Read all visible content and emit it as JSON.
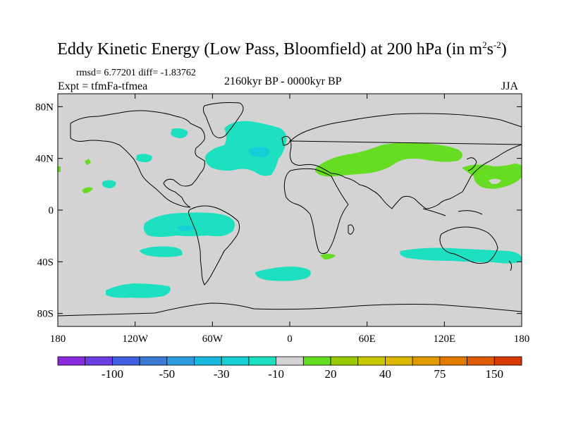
{
  "title": {
    "main": "Eddy Kinetic Energy (Low Pass, Bloomfield) at 200 hPa (in m",
    "sup1": "2",
    "mid": "s",
    "sup2": "-2",
    "end": ")"
  },
  "stats": "rmsd= 6.77201 diff= -1.83762",
  "experiment": "Expt = tfmFa-tfmea",
  "period": "2160kyr BP - 0000kyr BP",
  "season": "JJA",
  "map": {
    "projection": "cylindrical-equidistant",
    "background_color": "#d3d3d3",
    "lon_range": [
      -180,
      180
    ],
    "lat_range": [
      -90,
      90
    ],
    "y_ticks": [
      {
        "label": "80N",
        "lat": 80
      },
      {
        "label": "40N",
        "lat": 40
      },
      {
        "label": "0",
        "lat": 0
      },
      {
        "label": "40S",
        "lat": -40
      },
      {
        "label": "80S",
        "lat": -80
      }
    ],
    "x_ticks": [
      {
        "label": "180",
        "lon": -180
      },
      {
        "label": "120W",
        "lon": -120
      },
      {
        "label": "60W",
        "lon": -60
      },
      {
        "label": "0",
        "lon": 0
      },
      {
        "label": "60E",
        "lon": 60
      },
      {
        "label": "120E",
        "lon": 120
      },
      {
        "label": "180",
        "lon": 180
      }
    ]
  },
  "colorbar": {
    "colors": [
      "#8a2be2",
      "#6a3fe0",
      "#3f5ee0",
      "#3a7bd5",
      "#2e9be0",
      "#1ab8e0",
      "#14cfd8",
      "#1de0c0",
      "#d3d3d3",
      "#66dd22",
      "#99cc00",
      "#c8c800",
      "#ddb800",
      "#e39a00",
      "#e27a00",
      "#e05a00",
      "#d63a00"
    ],
    "labels": [
      {
        "text": "-100",
        "boundary": 2
      },
      {
        "text": "-50",
        "boundary": 4
      },
      {
        "text": "-30",
        "boundary": 6
      },
      {
        "text": "-10",
        "boundary": 8
      },
      {
        "text": "20",
        "boundary": 10
      },
      {
        "text": "40",
        "boundary": 12
      },
      {
        "text": "75",
        "boundary": 14
      },
      {
        "text": "150",
        "boundary": 16
      }
    ]
  }
}
